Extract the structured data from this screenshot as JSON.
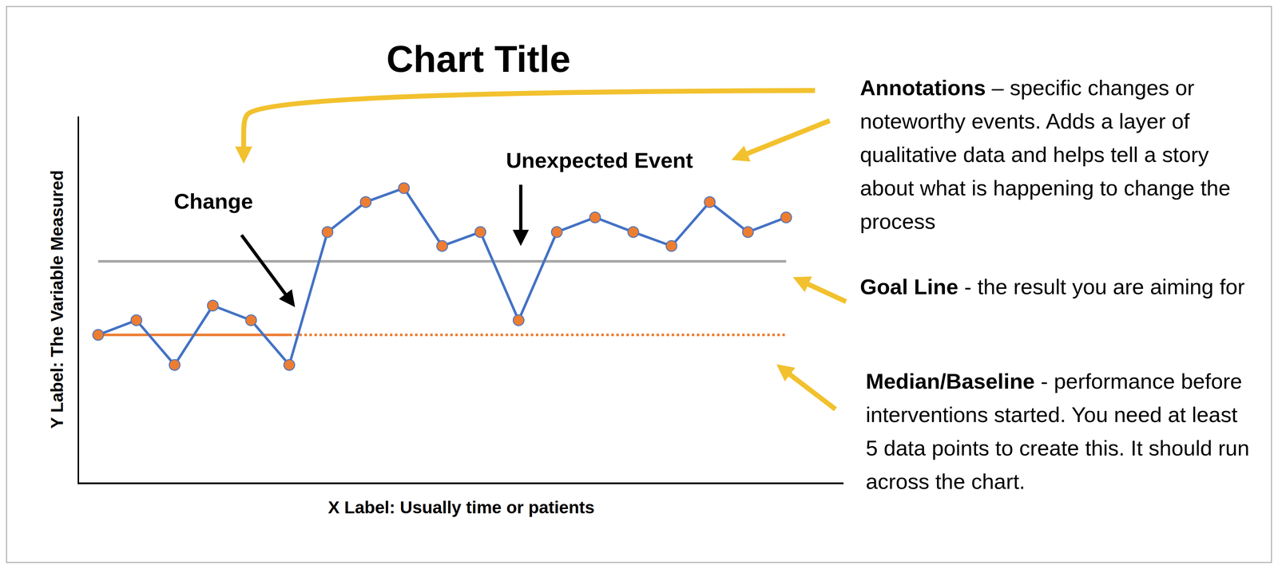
{
  "chart_data": {
    "type": "line",
    "title": "Chart Title",
    "x_label": "X Label: Usually time or patients",
    "y_label": "Y Label: The Variable Measured",
    "x": [
      1,
      2,
      3,
      4,
      5,
      6,
      7,
      8,
      9,
      10,
      11,
      12,
      13,
      14,
      15,
      16,
      17,
      18,
      19
    ],
    "values": [
      40.3,
      44.3,
      32.1,
      48.3,
      44.3,
      32.1,
      68.4,
      76.6,
      80.4,
      64.6,
      68.4,
      44.3,
      68.4,
      72.4,
      68.4,
      64.6,
      76.6,
      68.4,
      72.4
    ],
    "color": "#4472c4",
    "marker": "circle",
    "reference_lines": [
      {
        "value": 60.4,
        "x": [
          1,
          19
        ],
        "color": "#a5a5a5",
        "line_style": "solid"
      },
      {
        "value": 40.3,
        "x": [
          1,
          6
        ],
        "color": "#ed7d31",
        "line_style": "solid"
      },
      {
        "value": 40.3,
        "x": [
          6,
          19
        ],
        "color": "#ed7d31",
        "line_style": "dotted"
      }
    ],
    "annotations": [
      {
        "text": "Change",
        "x": 6
      },
      {
        "text": "Unexpected Event",
        "x": 12
      }
    ],
    "xlim": [
      0.5,
      20.5
    ],
    "ylim": [
      0,
      100
    ],
    "xticks": [],
    "yticks": [],
    "tick_labels": false,
    "grid": false
  },
  "callouts": [
    {
      "term": "Annotations",
      "text": "– specific changes or noteworthy events. Adds a layer of qualitative data and helps tell a story about what is happening to change the process"
    },
    {
      "term": "Goal Line",
      "text": "- the result you are aiming for"
    },
    {
      "term": "Median/Baseline",
      "text": "- performance before interventions started. You need at least 5 data points to create this. It should run across the chart."
    }
  ]
}
